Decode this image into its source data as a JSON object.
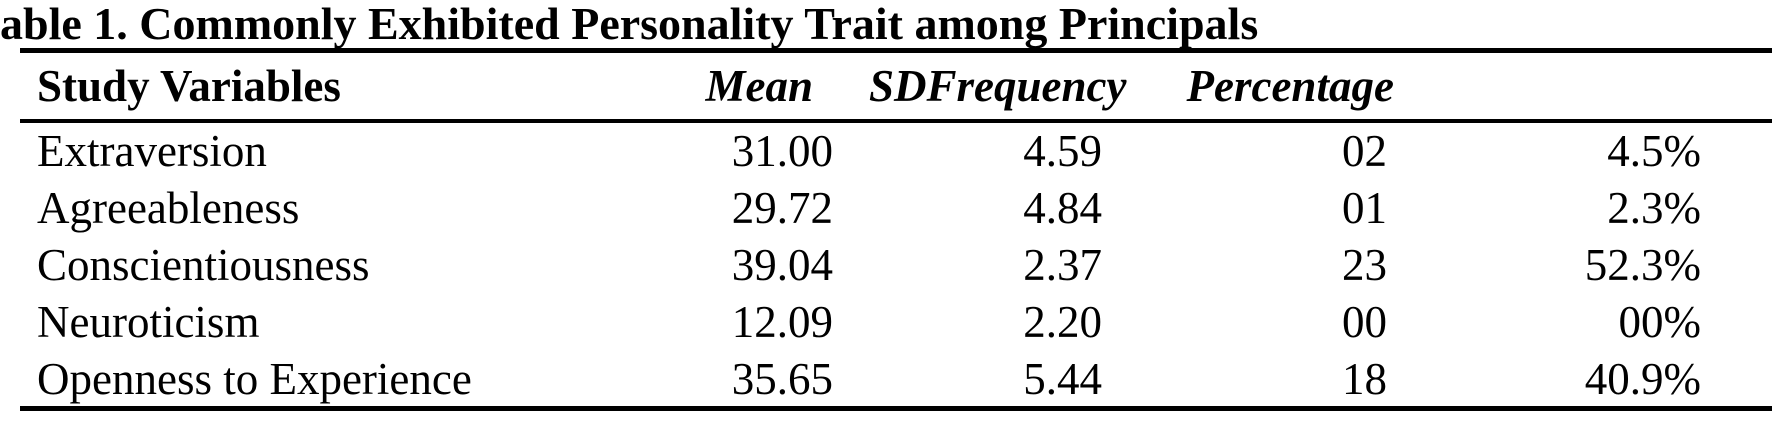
{
  "title": "able 1. Commonly Exhibited Personality Trait among Principals",
  "table": {
    "headers": {
      "study_variables": "Study Variables",
      "mean": "Mean",
      "sd": "SD",
      "frequency": "Frequency",
      "percentage": "Percentage"
    },
    "rows": [
      {
        "variable": "Extraversion",
        "mean": "31.00",
        "sd": "4.59",
        "frequency": "02",
        "percentage": "4.5%"
      },
      {
        "variable": "Agreeableness",
        "mean": "29.72",
        "sd": "4.84",
        "frequency": "01",
        "percentage": "2.3%"
      },
      {
        "variable": "Conscientiousness",
        "mean": "39.04",
        "sd": "2.37",
        "frequency": "23",
        "percentage": "52.3%"
      },
      {
        "variable": "Neuroticism",
        "mean": "12.09",
        "sd": "2.20",
        "frequency": "00",
        "percentage": "00%"
      },
      {
        "variable": "Openness to Experience",
        "mean": "35.65",
        "sd": "5.44",
        "frequency": "18",
        "percentage": "40.9%"
      }
    ]
  },
  "colors": {
    "text": "#000000",
    "background": "#ffffff",
    "rule": "#000000"
  },
  "chart_data": {
    "type": "table",
    "title": "able 1. Commonly Exhibited Personality Trait among Principals",
    "columns": [
      "Study Variables",
      "Mean",
      "SD",
      "Frequency",
      "Percentage"
    ],
    "rows": [
      [
        "Extraversion",
        31.0,
        4.59,
        2,
        "4.5%"
      ],
      [
        "Agreeableness",
        29.72,
        4.84,
        1,
        "2.3%"
      ],
      [
        "Conscientiousness",
        39.04,
        2.37,
        23,
        "52.3%"
      ],
      [
        "Neuroticism",
        12.09,
        2.2,
        0,
        "00%"
      ],
      [
        "Openness to Experience",
        35.65,
        5.44,
        18,
        "40.9%"
      ]
    ]
  }
}
